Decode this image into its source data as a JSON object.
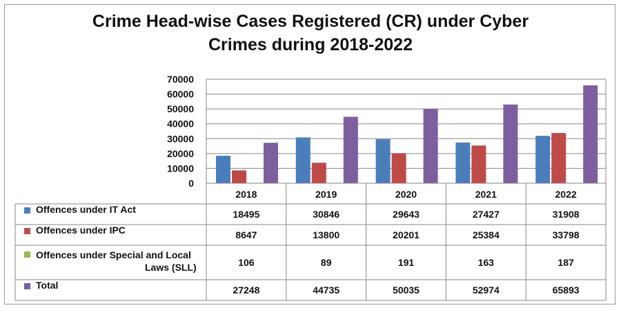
{
  "title_line1": "Crime Head-wise Cases Registered (CR) under Cyber",
  "title_line2": "Crimes during 2018-2022",
  "chart_data": {
    "type": "bar",
    "title": "Crime Head-wise Cases Registered (CR) under Cyber Crimes during 2018-2022",
    "categories": [
      "2018",
      "2019",
      "2020",
      "2021",
      "2022"
    ],
    "ylim": [
      0,
      70000
    ],
    "yticks": [
      "0",
      "10000",
      "20000",
      "30000",
      "40000",
      "50000",
      "60000",
      "70000"
    ],
    "grid": true,
    "legend_placement": "data-table",
    "series": [
      {
        "name": "Offences under IT Act",
        "color": "#4a7ebb",
        "values": [
          18495,
          30846,
          29643,
          27427,
          31908
        ]
      },
      {
        "name": "Offences under IPC",
        "color": "#be4b48",
        "values": [
          8647,
          13800,
          20201,
          25384,
          33798
        ]
      },
      {
        "name": "Offences under Special and Local Laws (SLL)",
        "name_lines": [
          "Offences under Special and Local",
          "Laws (SLL)"
        ],
        "color": "#98b954",
        "values": [
          106,
          89,
          191,
          163,
          187
        ]
      },
      {
        "name": "Total",
        "color": "#7d5fa0",
        "values": [
          27248,
          44735,
          50035,
          52974,
          65893
        ]
      }
    ]
  }
}
